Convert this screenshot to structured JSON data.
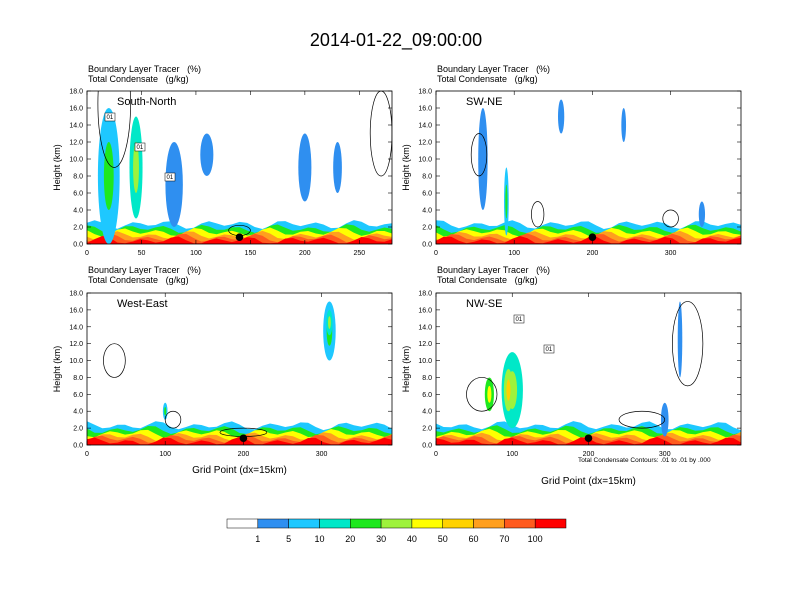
{
  "title": "2014-01-22_09:00:00",
  "var_title_1": "Boundary Layer Tracer",
  "var_unit_1": "(%)",
  "var_title_2": "Total Condensate",
  "var_unit_2": "(g/kg)",
  "ylabel": "Height (km)",
  "xlabel": "Grid Point (dx=15km)",
  "contour_note": "Total Condensate Contours: .01 to .01 by .000",
  "colorbar": {
    "colors": [
      "#ffffff",
      "#2f8ff0",
      "#1ec8ff",
      "#00e8c8",
      "#1ee81e",
      "#9ef23c",
      "#ffff00",
      "#ffd200",
      "#ff9f1e",
      "#ff5a1e",
      "#ff0000"
    ],
    "labels": [
      "1",
      "5",
      "10",
      "20",
      "30",
      "40",
      "50",
      "60",
      "70",
      "100"
    ]
  },
  "chart_data": [
    {
      "type": "heatmap",
      "name": "South-North",
      "xlim": [
        0,
        280
      ],
      "ylim": [
        0,
        18
      ],
      "xticks": [
        0,
        50,
        100,
        150,
        200,
        250
      ],
      "yticks": [
        "0.0",
        "2.0",
        "4.0",
        "6.0",
        "8.0",
        "10.0",
        "12.0",
        "14.0",
        "16.0",
        "18.0"
      ],
      "contour_labels": [
        "01",
        "01",
        "01"
      ],
      "marker_x": 140
    },
    {
      "type": "heatmap",
      "name": "SW-NE",
      "xlim": [
        0,
        390
      ],
      "ylim": [
        0,
        18
      ],
      "xticks": [
        0,
        100,
        200,
        300
      ],
      "yticks": [
        "0.0",
        "2.0",
        "4.0",
        "6.0",
        "8.0",
        "10.0",
        "12.0",
        "14.0",
        "16.0",
        "18.0"
      ],
      "contour_labels": [],
      "marker_x": 200
    },
    {
      "type": "heatmap",
      "name": "West-East",
      "xlim": [
        0,
        390
      ],
      "ylim": [
        0,
        18
      ],
      "xticks": [
        0,
        100,
        200,
        300
      ],
      "yticks": [
        "0.0",
        "2.0",
        "4.0",
        "6.0",
        "8.0",
        "10.0",
        "12.0",
        "14.0",
        "16.0",
        "18.0"
      ],
      "contour_labels": [],
      "marker_x": 200
    },
    {
      "type": "heatmap",
      "name": "NW-SE",
      "xlim": [
        0,
        400
      ],
      "ylim": [
        0,
        18
      ],
      "xticks": [
        0,
        100,
        200,
        300
      ],
      "yticks": [
        "0.0",
        "2.0",
        "4.0",
        "6.0",
        "8.0",
        "10.0",
        "12.0",
        "14.0",
        "16.0",
        "18.0"
      ],
      "contour_labels": [
        "01",
        "01"
      ],
      "marker_x": 200
    }
  ]
}
